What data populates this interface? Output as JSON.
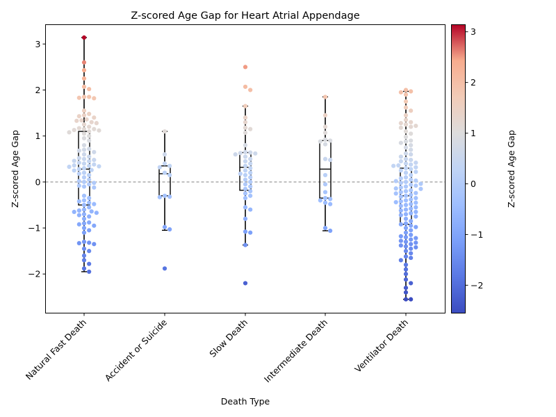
{
  "chart_data": {
    "type": "scatter",
    "title": "Z-scored Age Gap for Heart Atrial Appendage",
    "xlabel": "Death Type",
    "ylabel": "Z-scored Age Gap",
    "categories": [
      "Natural Fast Death",
      "Accident or Suicide",
      "Slow Death",
      "Intermediate Death",
      "Ventilator Death"
    ],
    "ylim": [
      -2.85,
      3.42
    ],
    "yticks": [
      -2,
      -1,
      0,
      1,
      2,
      3
    ],
    "ytick_labels": [
      "−2",
      "−1",
      "0",
      "1",
      "2",
      "3"
    ],
    "reference_line": 0,
    "colormap": "coolwarm",
    "colorbar": {
      "label": "Z-scored Age Gap",
      "min": -2.55,
      "max": 3.14,
      "ticks": [
        -2,
        -1,
        0,
        1,
        2,
        3
      ],
      "tick_labels": [
        "−2",
        "−1",
        "0",
        "1",
        "2",
        "3"
      ]
    },
    "series": [
      {
        "category": "Natural Fast Death",
        "box": {
          "q1": -0.5,
          "median": 0.28,
          "q3": 1.1,
          "whisker_low": -1.95,
          "whisker_high": 3.14
        },
        "values": [
          3.14,
          2.6,
          2.43,
          2.25,
          2.07,
          2.02,
          1.85,
          1.85,
          1.83,
          1.82,
          1.55,
          1.48,
          1.45,
          1.43,
          1.4,
          1.36,
          1.34,
          1.33,
          1.3,
          1.28,
          1.25,
          1.2,
          1.17,
          1.15,
          1.15,
          1.13,
          1.12,
          1.1,
          1.08,
          1.05,
          1.0,
          0.95,
          0.9,
          0.8,
          0.72,
          0.7,
          0.68,
          0.65,
          0.6,
          0.55,
          0.52,
          0.5,
          0.48,
          0.46,
          0.45,
          0.42,
          0.4,
          0.38,
          0.36,
          0.35,
          0.34,
          0.33,
          0.3,
          0.28,
          0.26,
          0.25,
          0.2,
          0.18,
          0.15,
          0.1,
          0.05,
          0.02,
          0.0,
          -0.02,
          -0.05,
          -0.08,
          -0.1,
          -0.12,
          -0.3,
          -0.35,
          -0.4,
          -0.42,
          -0.45,
          -0.48,
          -0.5,
          -0.55,
          -0.6,
          -0.62,
          -0.64,
          -0.65,
          -0.67,
          -0.7,
          -0.72,
          -0.75,
          -0.8,
          -0.88,
          -0.9,
          -0.92,
          -0.95,
          -1.0,
          -1.05,
          -1.1,
          -1.3,
          -1.32,
          -1.33,
          -1.35,
          -1.45,
          -1.5,
          -1.6,
          -1.7,
          -1.78,
          -1.88,
          -1.95
        ]
      },
      {
        "category": "Accident or Suicide",
        "box": {
          "q1": -0.3,
          "median": 0.18,
          "q3": 0.35,
          "whisker_low": -1.05,
          "whisker_high": 1.1
        },
        "values": [
          1.1,
          0.6,
          0.4,
          0.35,
          0.32,
          0.2,
          0.15,
          -0.3,
          -0.32,
          -0.33,
          -0.98,
          -1.03,
          -1.88
        ]
      },
      {
        "category": "Slow Death",
        "box": {
          "q1": -0.18,
          "median": 0.32,
          "q3": 0.64,
          "whisker_low": -1.37,
          "whisker_high": 1.65
        },
        "values": [
          2.5,
          2.07,
          2.0,
          1.65,
          1.4,
          1.3,
          1.18,
          1.15,
          1.07,
          0.8,
          0.65,
          0.64,
          0.63,
          0.62,
          0.6,
          0.55,
          0.5,
          0.45,
          0.4,
          0.35,
          0.3,
          0.25,
          0.2,
          0.18,
          0.15,
          0.1,
          0.05,
          0.0,
          -0.05,
          -0.1,
          -0.15,
          -0.2,
          -0.25,
          -0.3,
          -0.35,
          -0.55,
          -0.6,
          -0.8,
          -1.08,
          -1.1,
          -1.37,
          -2.2
        ]
      },
      {
        "category": "Intermediate Death",
        "box": {
          "q1": -0.35,
          "median": 0.28,
          "q3": 0.9,
          "whisker_low": -1.06,
          "whisker_high": 1.85
        },
        "values": [
          1.85,
          1.45,
          1.2,
          1.07,
          0.92,
          0.9,
          0.88,
          0.82,
          0.5,
          0.48,
          0.15,
          -0.05,
          -0.22,
          -0.35,
          -0.37,
          -0.4,
          -0.45,
          -0.48,
          -1.0,
          -1.06
        ]
      },
      {
        "category": "Ventilator Death",
        "box": {
          "q1": -0.92,
          "median": -0.3,
          "q3": 0.3,
          "whisker_low": -2.55,
          "whisker_high": 1.97
        },
        "values": [
          2.0,
          1.97,
          1.95,
          1.9,
          1.75,
          1.62,
          1.55,
          1.45,
          1.35,
          1.3,
          1.28,
          1.25,
          1.22,
          1.2,
          1.18,
          1.1,
          1.05,
          0.98,
          0.9,
          0.88,
          0.85,
          0.8,
          0.75,
          0.7,
          0.62,
          0.6,
          0.55,
          0.5,
          0.48,
          0.45,
          0.42,
          0.4,
          0.38,
          0.36,
          0.35,
          0.32,
          0.3,
          0.28,
          0.25,
          0.22,
          0.2,
          0.15,
          0.1,
          0.08,
          0.05,
          0.03,
          0.02,
          0.0,
          -0.02,
          -0.04,
          -0.06,
          -0.08,
          -0.1,
          -0.12,
          -0.14,
          -0.15,
          -0.18,
          -0.2,
          -0.22,
          -0.24,
          -0.25,
          -0.28,
          -0.3,
          -0.32,
          -0.35,
          -0.38,
          -0.4,
          -0.42,
          -0.44,
          -0.45,
          -0.48,
          -0.5,
          -0.52,
          -0.55,
          -0.58,
          -0.6,
          -0.62,
          -0.65,
          -0.68,
          -0.7,
          -0.72,
          -0.75,
          -0.8,
          -0.85,
          -0.9,
          -0.92,
          -0.95,
          -0.98,
          -1.0,
          -1.05,
          -1.1,
          -1.15,
          -1.18,
          -1.2,
          -1.22,
          -1.25,
          -1.28,
          -1.3,
          -1.32,
          -1.35,
          -1.38,
          -1.4,
          -1.42,
          -1.45,
          -1.5,
          -1.55,
          -1.62,
          -1.65,
          -1.7,
          -1.8,
          -1.9,
          -2.0,
          -2.12,
          -2.2,
          -2.3,
          -2.4,
          -2.55,
          -2.55
        ]
      }
    ]
  }
}
